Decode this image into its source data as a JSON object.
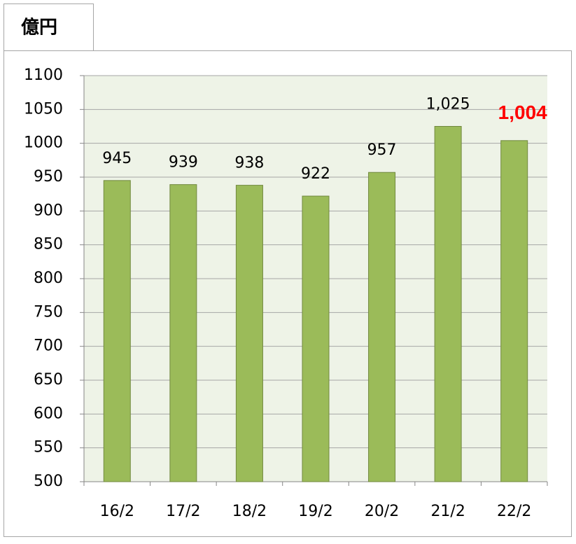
{
  "chart_data": {
    "type": "bar",
    "unit": "億円",
    "categories": [
      "16/2",
      "17/2",
      "18/2",
      "19/2",
      "20/2",
      "21/2",
      "22/2"
    ],
    "values": [
      945,
      939,
      938,
      922,
      957,
      1025,
      1004
    ],
    "value_labels": [
      "945",
      "939",
      "938",
      "922",
      "957",
      "1,025",
      "1,004"
    ],
    "value_label_colors": [
      null,
      null,
      null,
      null,
      null,
      null,
      "#ff0000"
    ],
    "color": "#9bbb59",
    "ylim": [
      500,
      1100
    ],
    "yticks": [
      500,
      550,
      600,
      650,
      700,
      750,
      800,
      850,
      900,
      950,
      1000,
      1050,
      1100
    ],
    "grid": true
  }
}
